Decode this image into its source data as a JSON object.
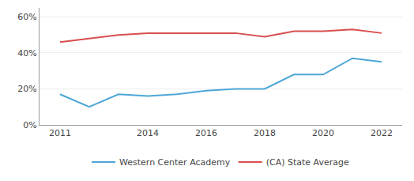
{
  "chart_data": {
    "type": "line",
    "x": [
      2011,
      2012,
      2013,
      2014,
      2015,
      2016,
      2017,
      2018,
      2019,
      2020,
      2021,
      2022
    ],
    "series": [
      {
        "name": "Western Center Academy",
        "color": "#4da6d6",
        "values": [
          0.17,
          0.1,
          0.17,
          0.16,
          0.17,
          0.19,
          0.2,
          0.2,
          0.28,
          0.28,
          0.37,
          0.35
        ]
      },
      {
        "name": "(CA) State Average",
        "color": "#d94f4f",
        "values": [
          0.46,
          0.48,
          0.5,
          0.51,
          0.51,
          0.51,
          0.51,
          0.49,
          0.52,
          0.52,
          0.53,
          0.51
        ]
      }
    ],
    "xlim": [
      2010.3,
      2022.7
    ],
    "xticks": [
      2011,
      2014,
      2016,
      2018,
      2020,
      2022
    ],
    "ylim": [
      0,
      0.65
    ],
    "yticks": [
      {
        "value": 0.0,
        "label": "0%"
      },
      {
        "value": 0.2,
        "label": "20%"
      },
      {
        "value": 0.4,
        "label": "40%"
      },
      {
        "value": 0.6,
        "label": "60%"
      }
    ],
    "grid": true,
    "legend": "bottom"
  }
}
